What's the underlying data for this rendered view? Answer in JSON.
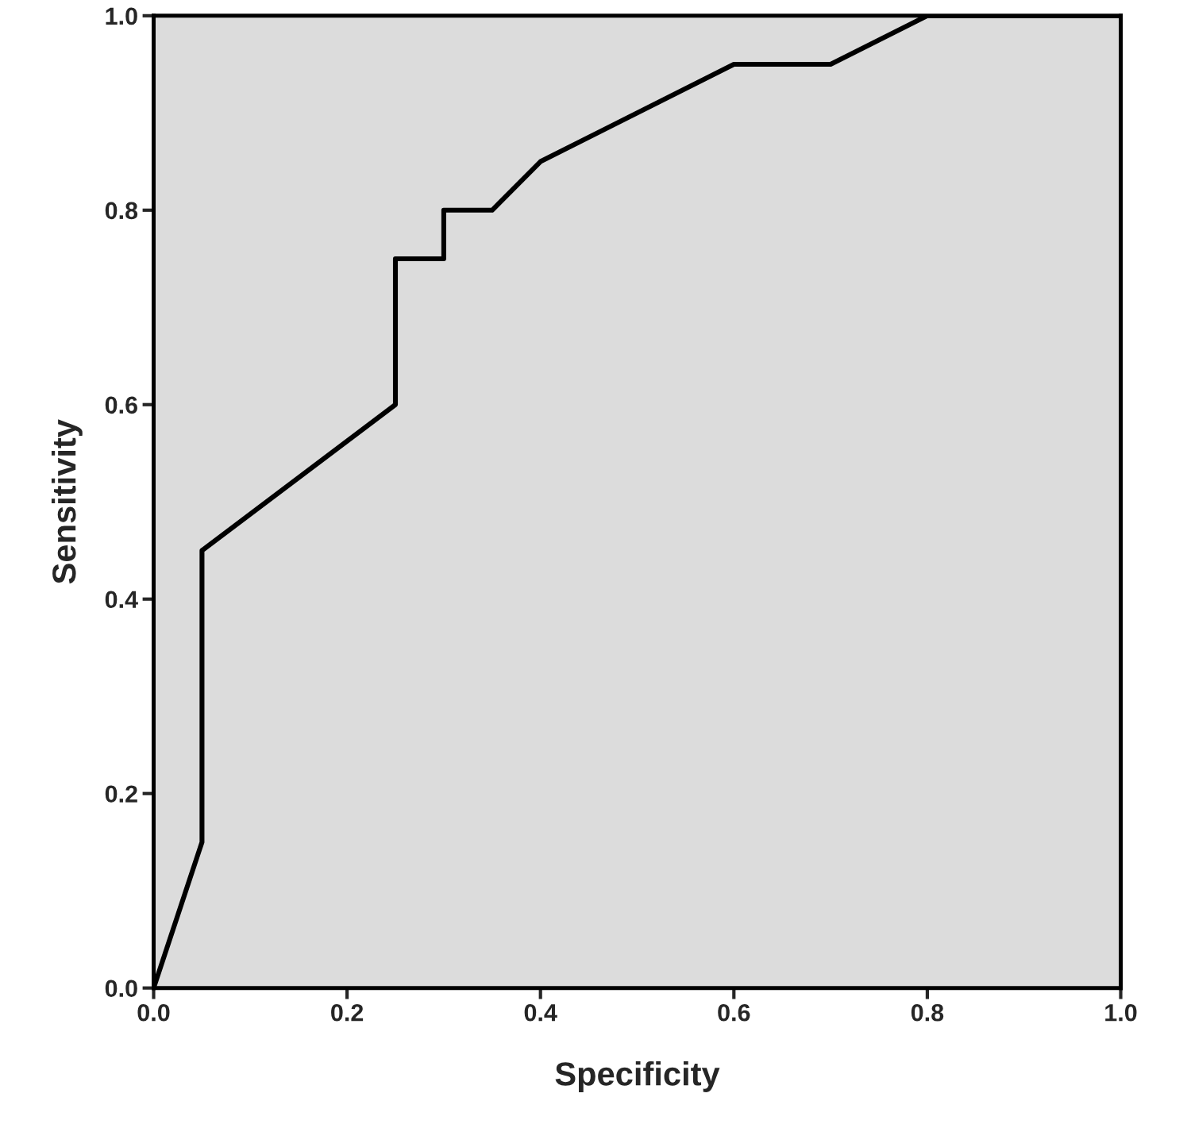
{
  "chart_data": {
    "type": "line",
    "xlabel": "Specificity",
    "ylabel": "Sensitivity",
    "x": [
      0,
      0.05,
      0.05,
      0.25,
      0.25,
      0.3,
      0.3,
      0.35,
      0.4,
      0.6,
      0.7,
      0.8,
      1.0
    ],
    "series": [
      {
        "color": "#000000",
        "values": [
          0,
          0.15,
          0.45,
          0.6,
          0.75,
          0.75,
          0.8,
          0.8,
          0.85,
          0.95,
          0.95,
          1.0,
          1.0
        ]
      }
    ],
    "xlim": [
      0,
      1
    ],
    "ylim": [
      0,
      1
    ],
    "xticks": [
      {
        "value": 0,
        "label": "0.0"
      },
      {
        "value": 0.2,
        "label": "0.2"
      },
      {
        "value": 0.4,
        "label": "0.4"
      },
      {
        "value": 0.6,
        "label": "0.6"
      },
      {
        "value": 0.8,
        "label": "0.8"
      },
      {
        "value": 1,
        "label": "1.0"
      }
    ],
    "yticks": [
      {
        "value": 0,
        "label": "0.0"
      },
      {
        "value": 0.2,
        "label": "0.2"
      },
      {
        "value": 0.4,
        "label": "0.4"
      },
      {
        "value": 0.6,
        "label": "0.6"
      },
      {
        "value": 0.8,
        "label": "0.8"
      },
      {
        "value": 1,
        "label": "1.0"
      }
    ],
    "grid": false,
    "marker": "none",
    "line_style": "solid"
  }
}
